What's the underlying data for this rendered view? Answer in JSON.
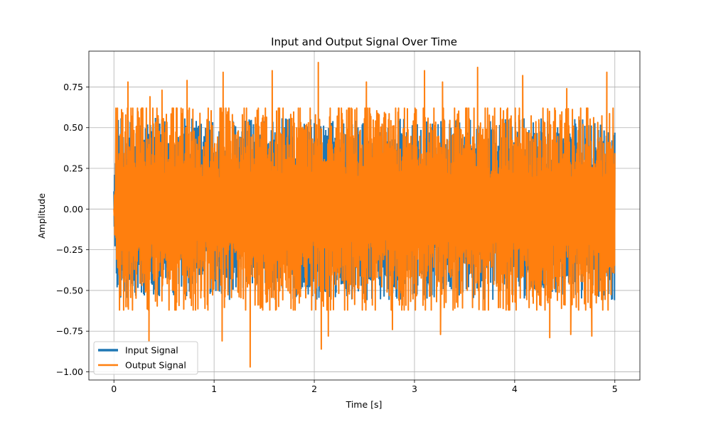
{
  "chart_data": {
    "type": "line",
    "title": "Input and Output Signal Over Time",
    "xlabel": "Time [s]",
    "ylabel": "Amplitude",
    "xlim": [
      -0.25,
      5.25
    ],
    "ylim": [
      -1.05,
      0.97
    ],
    "xticks": [
      0,
      1,
      2,
      3,
      4,
      5
    ],
    "xtick_labels": [
      "0",
      "1",
      "2",
      "3",
      "4",
      "5"
    ],
    "yticks": [
      -1.0,
      -0.75,
      -0.5,
      -0.25,
      0.0,
      0.25,
      0.5,
      0.75
    ],
    "ytick_labels": [
      "−1.00",
      "−0.75",
      "−0.50",
      "−0.25",
      "0.00",
      "0.25",
      "0.50",
      "0.75"
    ],
    "grid": true,
    "legend_position": "lower-left",
    "series": [
      {
        "name": "Input Signal",
        "color": "#1f77b4",
        "x_range": [
          0,
          5
        ],
        "envelope": {
          "max": 0.56,
          "min": -0.56
        }
      },
      {
        "name": "Output Signal",
        "color": "#ff7f0e",
        "x_range": [
          0,
          5
        ],
        "peaks": [
          {
            "x": 0.02,
            "y": 0.62
          },
          {
            "x": 0.14,
            "y": 0.78
          },
          {
            "x": 0.36,
            "y": 0.69
          },
          {
            "x": 0.48,
            "y": 0.73
          },
          {
            "x": 0.73,
            "y": 0.79
          },
          {
            "x": 1.09,
            "y": 0.84
          },
          {
            "x": 1.58,
            "y": 0.85
          },
          {
            "x": 2.04,
            "y": 0.9
          },
          {
            "x": 2.52,
            "y": 0.78
          },
          {
            "x": 3.1,
            "y": 0.85
          },
          {
            "x": 3.28,
            "y": 0.78
          },
          {
            "x": 3.63,
            "y": 0.87
          },
          {
            "x": 4.08,
            "y": 0.82
          },
          {
            "x": 4.52,
            "y": 0.74
          },
          {
            "x": 4.92,
            "y": 0.84
          }
        ],
        "troughs": [
          {
            "x": 0.12,
            "y": -0.6
          },
          {
            "x": 0.35,
            "y": -0.81
          },
          {
            "x": 1.08,
            "y": -0.81
          },
          {
            "x": 1.36,
            "y": -0.97
          },
          {
            "x": 2.07,
            "y": -0.86
          },
          {
            "x": 2.14,
            "y": -0.78
          },
          {
            "x": 2.78,
            "y": -0.74
          },
          {
            "x": 3.26,
            "y": -0.77
          },
          {
            "x": 4.35,
            "y": -0.79
          },
          {
            "x": 4.56,
            "y": -0.77
          },
          {
            "x": 4.77,
            "y": -0.78
          }
        ],
        "typical_envelope": {
          "max": 0.6,
          "min": -0.6
        }
      }
    ]
  }
}
